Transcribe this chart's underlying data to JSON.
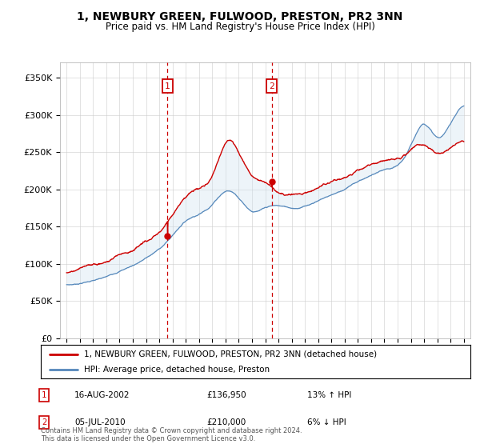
{
  "title": "1, NEWBURY GREEN, FULWOOD, PRESTON, PR2 3NN",
  "subtitle": "Price paid vs. HM Land Registry's House Price Index (HPI)",
  "legend_line1": "1, NEWBURY GREEN, FULWOOD, PRESTON, PR2 3NN (detached house)",
  "legend_line2": "HPI: Average price, detached house, Preston",
  "event1_label": "1",
  "event1_date": "16-AUG-2002",
  "event1_price": "£136,950",
  "event1_hpi": "13% ↑ HPI",
  "event1_year": 2002.62,
  "event1_price_val": 136950,
  "event2_label": "2",
  "event2_date": "05-JUL-2010",
  "event2_price": "£210,000",
  "event2_hpi": "6% ↓ HPI",
  "event2_year": 2010.51,
  "event2_price_val": 210000,
  "footer": "Contains HM Land Registry data © Crown copyright and database right 2024.\nThis data is licensed under the Open Government Licence v3.0.",
  "red_color": "#cc0000",
  "blue_color": "#5588bb",
  "shade_color": "#cce0f0",
  "ylim": [
    0,
    370000
  ],
  "yticks": [
    0,
    50000,
    100000,
    150000,
    200000,
    250000,
    300000,
    350000
  ],
  "ytick_labels": [
    "£0",
    "£50K",
    "£100K",
    "£150K",
    "£200K",
    "£250K",
    "£300K",
    "£350K"
  ],
  "xlim_start": 1994.5,
  "xlim_end": 2025.5,
  "xticks": [
    1995,
    1996,
    1997,
    1998,
    1999,
    2000,
    2001,
    2002,
    2003,
    2004,
    2005,
    2006,
    2007,
    2008,
    2009,
    2010,
    2011,
    2012,
    2013,
    2014,
    2015,
    2016,
    2017,
    2018,
    2019,
    2020,
    2021,
    2022,
    2023,
    2024,
    2025
  ],
  "hpi_years": [
    1995,
    1996,
    1997,
    1998,
    1999,
    2000,
    2001,
    2002,
    2003,
    2004,
    2005,
    2006,
    2007,
    2008,
    2009,
    2010,
    2011,
    2012,
    2013,
    2014,
    2015,
    2016,
    2017,
    2018,
    2019,
    2020,
    2021,
    2022,
    2023,
    2024,
    2025
  ],
  "hpi_values": [
    72000,
    74000,
    78000,
    82000,
    90000,
    98000,
    108000,
    120000,
    138000,
    158000,
    168000,
    182000,
    200000,
    192000,
    175000,
    178000,
    180000,
    177000,
    180000,
    188000,
    196000,
    204000,
    214000,
    222000,
    228000,
    232000,
    258000,
    288000,
    270000,
    288000,
    312000
  ],
  "red_years": [
    1995,
    1996,
    1997,
    1998,
    1999,
    2000,
    2001,
    2002,
    2003,
    2004,
    2005,
    2006,
    2007,
    2008,
    2009,
    2010,
    2011,
    2012,
    2013,
    2014,
    2015,
    2016,
    2017,
    2018,
    2019,
    2020,
    2021,
    2022,
    2023,
    2024,
    2025
  ],
  "red_values": [
    88000,
    92000,
    96000,
    100000,
    110000,
    118000,
    128000,
    137000,
    162000,
    188000,
    198000,
    214000,
    260000,
    248000,
    220000,
    212000,
    200000,
    196000,
    200000,
    208000,
    216000,
    224000,
    234000,
    240000,
    244000,
    248000,
    258000,
    264000,
    252000,
    258000,
    264000
  ]
}
